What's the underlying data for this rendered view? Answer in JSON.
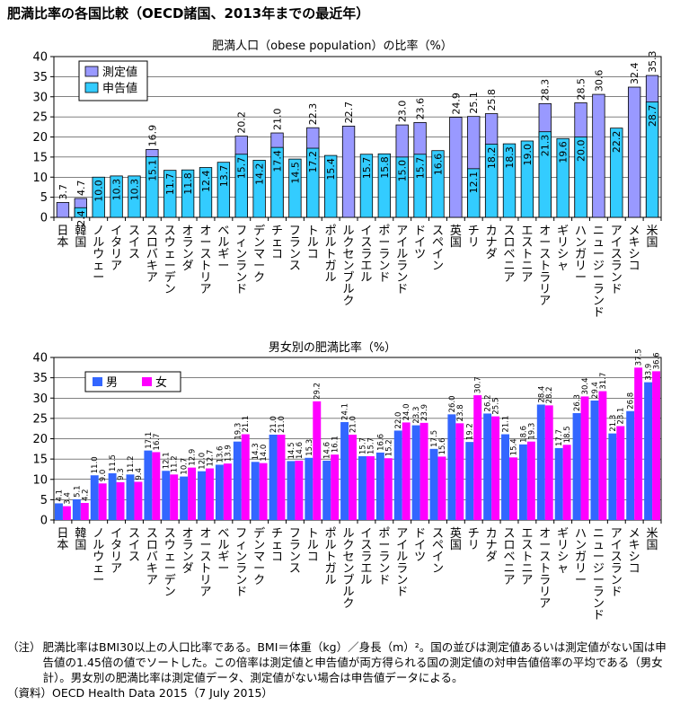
{
  "page": {
    "title": "肥満比率の各国比較（OECD諸国、2013年までの最近年）",
    "note_label": "（注）",
    "note_text": "肥満比率はBMI30以上の人口比率である。BMI＝体重（kg）／身長（m）²。国の並びは測定値あるいは測定値がない国は申告値の1.45倍の値でソートした。この倍率は測定値と申告値が両方得られる国の測定値の対申告値倍率の平均である（男女計）。男女別の肥満比率は測定値データ、測定値がない場合は申告値データによる。",
    "source_label": "（資料）",
    "source_text": "OECD Health Data 2015（7 July 2015）"
  },
  "colors": {
    "measured": "#9999ff",
    "self_reported": "#33ccff",
    "male": "#3366ff",
    "female": "#ff00ff",
    "grid": "#000000"
  },
  "chart_data": [
    {
      "type": "bar",
      "title": "肥満人口（obese population）の比率（%）",
      "ylim": [
        0,
        40
      ],
      "yticks": [
        0,
        5,
        10,
        15,
        20,
        25,
        30,
        35,
        40
      ],
      "legend_placement": "top-left",
      "categories": [
        "日本",
        "韓国",
        "ノルウェー",
        "イタリア",
        "スイス",
        "スロバキア",
        "スウェーデン",
        "オランダ",
        "オーストリア",
        "ベルギー",
        "フィンランド",
        "デンマーク",
        "チェコ",
        "フランス",
        "トルコ",
        "ポルトガル",
        "ルクセンブルク",
        "イスラエル",
        "ポーランド",
        "アイルランド",
        "ドイツ",
        "スペイン",
        "英国",
        "チリ",
        "カナダ",
        "スロベニア",
        "エストニア",
        "オーストラリア",
        "ギリシャ",
        "ハンガリー",
        "ニュージーランド",
        "アイスランド",
        "メキシコ",
        "米国"
      ],
      "series": [
        {
          "name": "測定値",
          "values": [
            3.7,
            4.7,
            null,
            null,
            null,
            16.9,
            null,
            null,
            null,
            null,
            20.2,
            null,
            21.0,
            null,
            22.3,
            null,
            22.7,
            null,
            null,
            23.0,
            23.6,
            null,
            24.9,
            25.1,
            25.8,
            null,
            null,
            28.3,
            null,
            28.5,
            30.6,
            null,
            32.4,
            35.3
          ]
        },
        {
          "name": "申告値",
          "values": [
            null,
            2.4,
            10.0,
            10.3,
            10.3,
            15.1,
            11.7,
            11.8,
            12.4,
            13.7,
            15.7,
            14.2,
            17.4,
            14.5,
            17.2,
            15.4,
            null,
            15.7,
            15.8,
            15.0,
            15.7,
            16.6,
            null,
            12.1,
            18.2,
            18.3,
            19.0,
            21.3,
            19.6,
            20.0,
            null,
            22.2,
            null,
            28.7
          ]
        }
      ]
    },
    {
      "type": "bar",
      "title": "男女別の肥満比率（%）",
      "ylim": [
        0,
        40
      ],
      "yticks": [
        0,
        5,
        10,
        15,
        20,
        25,
        30,
        35,
        40
      ],
      "legend_placement": "top-left",
      "categories": [
        "日本",
        "韓国",
        "ノルウェー",
        "イタリア",
        "スイス",
        "スロバキア",
        "スウェーデン",
        "オランダ",
        "オーストリア",
        "ベルギー",
        "フィンランド",
        "デンマーク",
        "チェコ",
        "フランス",
        "トルコ",
        "ポルトガル",
        "ルクセンブルク",
        "イスラエル",
        "ポーランド",
        "アイルランド",
        "ドイツ",
        "スペイン",
        "英国",
        "チリ",
        "カナダ",
        "スロベニア",
        "エストニア",
        "オーストラリア",
        "ギリシャ",
        "ハンガリー",
        "ニュージーランド",
        "アイスランド",
        "メキシコ",
        "米国"
      ],
      "series": [
        {
          "name": "男",
          "values": [
            4.1,
            5.1,
            11.0,
            11.5,
            11.2,
            17.1,
            12.1,
            10.7,
            12.0,
            13.6,
            19.3,
            14.3,
            21.0,
            14.5,
            15.3,
            14.6,
            24.1,
            15.7,
            16.6,
            22.0,
            23.3,
            17.5,
            26.0,
            19.2,
            26.2,
            21.1,
            18.6,
            28.4,
            17.7,
            26.3,
            29.4,
            21.3,
            26.8,
            33.9
          ]
        },
        {
          "name": "女",
          "values": [
            3.4,
            4.2,
            9.0,
            9.3,
            9.4,
            16.7,
            11.2,
            12.9,
            12.7,
            13.9,
            21.1,
            14.0,
            21.0,
            14.6,
            29.2,
            16.1,
            21.0,
            15.7,
            15.2,
            24.0,
            23.9,
            15.6,
            23.8,
            30.7,
            25.5,
            15.4,
            19.3,
            28.2,
            18.5,
            30.4,
            31.7,
            23.1,
            37.5,
            36.6
          ]
        }
      ]
    }
  ]
}
